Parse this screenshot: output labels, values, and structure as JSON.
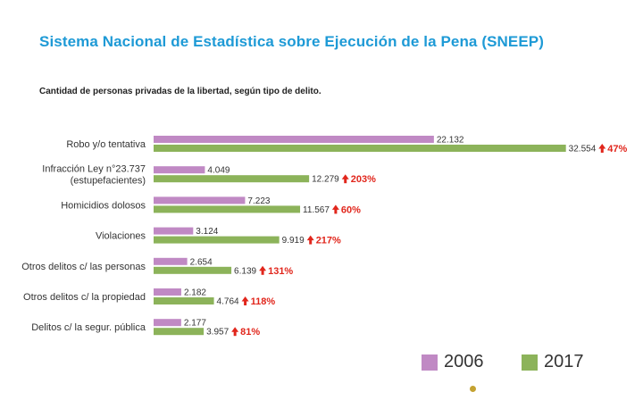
{
  "header": {
    "title": "Sistema Nacional de Estadística sobre Ejecución de la Pena (SNEEP)"
  },
  "chart_data": {
    "type": "bar",
    "orientation": "horizontal",
    "title": "Cantidad de personas privadas de la libertad, según tipo de delito.",
    "categories": [
      [
        "Robo y/o tentativa"
      ],
      [
        "Infracción Ley n°23.737",
        "(estupefacientes)"
      ],
      [
        "Homicidios dolosos"
      ],
      [
        "Violaciones"
      ],
      [
        "Otros delitos c/ las personas"
      ],
      [
        "Otros delitos c/ la propiedad"
      ],
      [
        "Delitos c/ la segur. pública"
      ]
    ],
    "series": [
      {
        "name": "2006",
        "color": "#c089c4",
        "values": [
          22132,
          4049,
          7223,
          3124,
          2654,
          2182,
          2177
        ],
        "value_labels": [
          "22.132",
          "4.049",
          "7.223",
          "3.124",
          "2.654",
          "2.182",
          "2.177"
        ]
      },
      {
        "name": "2017",
        "color": "#8cb35a",
        "values": [
          32554,
          12279,
          11567,
          9919,
          6139,
          4764,
          3957
        ],
        "value_labels": [
          "32.554",
          "12.279",
          "11.567",
          "9.919",
          "6.139",
          "4.764",
          "3.957"
        ]
      }
    ],
    "change_labels": [
      "47%",
      "203%",
      "60%",
      "217%",
      "131%",
      "118%",
      "81%"
    ],
    "change_color": "#e1261c",
    "change_icon": "up-arrow-icon",
    "legend_position": "bottom-right",
    "grid": false,
    "xlim": [
      0,
      33000
    ]
  }
}
